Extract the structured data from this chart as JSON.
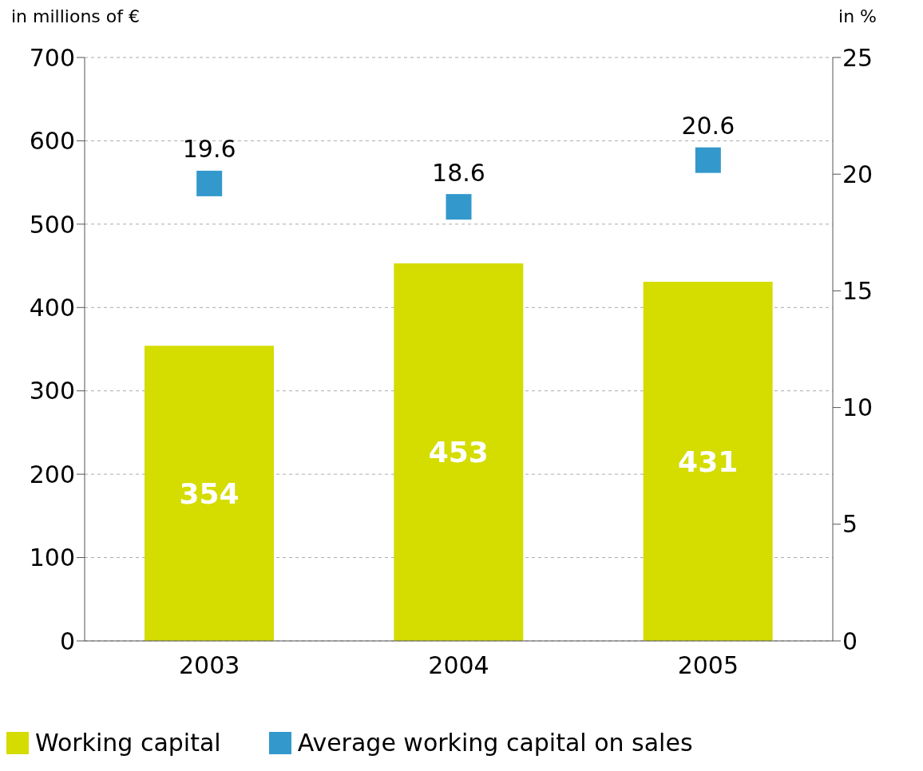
{
  "chart_data": {
    "type": "bar",
    "categories": [
      "2003",
      "2004",
      "2005"
    ],
    "series": [
      {
        "name": "Working capital",
        "color": "#d4dc00",
        "values": [
          354,
          453,
          431
        ]
      },
      {
        "name": "Average working capital on sales",
        "type": "scatter",
        "axis": "y2",
        "color": "#3399cc",
        "values": [
          19.6,
          18.6,
          20.6
        ]
      }
    ],
    "ylabel": "in millions of €",
    "y2label": "in %",
    "ylim": [
      0,
      700
    ],
    "yticks": [
      0,
      100,
      200,
      300,
      400,
      500,
      600,
      700
    ],
    "y2lim": [
      0,
      25
    ],
    "y2ticks": [
      0,
      5,
      10,
      15,
      20,
      25
    ],
    "grid": "y",
    "legend": "bottom left",
    "marker": "square",
    "data_labels": true
  }
}
